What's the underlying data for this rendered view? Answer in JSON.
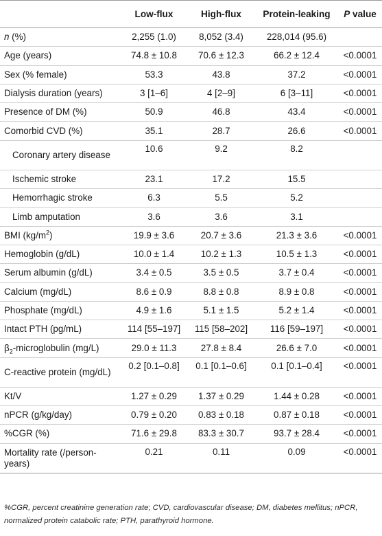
{
  "table": {
    "headers": {
      "col0": "",
      "col1": "Low-flux",
      "col2": "High-flux",
      "col3": "Protein-leaking",
      "col4_italic": "P",
      "col4_rest": " value"
    },
    "rows": [
      {
        "label_italic": "n",
        "label": " (%)",
        "low": "2,255 (1.0)",
        "high": "8,052 (3.4)",
        "prot": "228,014 (95.6)",
        "p": ""
      },
      {
        "label": "Age (years)",
        "low": "74.8 ± 10.8",
        "high": "70.6 ± 12.3",
        "prot": "66.2 ± 12.4",
        "p": "<0.0001"
      },
      {
        "label": "Sex (% female)",
        "low": "53.3",
        "high": "43.8",
        "prot": "37.2",
        "p": "<0.0001"
      },
      {
        "label": "Dialysis duration (years)",
        "low": "3 [1–6]",
        "high": "4 [2–9]",
        "prot": "6 [3–11]",
        "p": "<0.0001"
      },
      {
        "label": "Presence of DM (%)",
        "low": "50.9",
        "high": "46.8",
        "prot": "43.4",
        "p": "<0.0001"
      },
      {
        "label": "Comorbid CVD (%)",
        "low": "35.1",
        "high": "28.7",
        "prot": "26.6",
        "p": "<0.0001"
      },
      {
        "label": "Coronary artery disease",
        "low": "10.6",
        "high": "9.2",
        "prot": "8.2",
        "p": ""
      },
      {
        "label": "Ischemic stroke",
        "low": "23.1",
        "high": "17.2",
        "prot": "15.5",
        "p": ""
      },
      {
        "label": "Hemorrhagic stroke",
        "low": "6.3",
        "high": "5.5",
        "prot": "5.2",
        "p": ""
      },
      {
        "label": "Limb amputation",
        "low": "3.6",
        "high": "3.6",
        "prot": "3.1",
        "p": ""
      },
      {
        "label": "BMI (kg/m",
        "label_sup": "2",
        "label_after": ")",
        "low": "19.9 ± 3.6",
        "high": "20.7 ± 3.6",
        "prot": "21.3 ± 3.6",
        "p": "<0.0001"
      },
      {
        "label": "Hemoglobin (g/dL)",
        "low": "10.0 ± 1.4",
        "high": "10.2 ± 1.3",
        "prot": "10.5 ± 1.3",
        "p": "<0.0001"
      },
      {
        "label": "Serum albumin (g/dL)",
        "low": "3.4 ± 0.5",
        "high": "3.5 ± 0.5",
        "prot": "3.7 ± 0.4",
        "p": "<0.0001"
      },
      {
        "label": "Calcium (mg/dL)",
        "low": "8.6 ± 0.9",
        "high": "8.8 ± 0.8",
        "prot": "8.9 ± 0.8",
        "p": "<0.0001"
      },
      {
        "label": "Phosphate (mg/dL)",
        "low": "4.9 ± 1.6",
        "high": "5.1 ± 1.5",
        "prot": "5.2 ± 1.4",
        "p": "<0.0001"
      },
      {
        "label": "Intact PTH (pg/mL)",
        "low": "114 [55–197]",
        "high": "115 [58–202]",
        "prot": "116 [59–197]",
        "p": "<0.0001"
      },
      {
        "label": "β",
        "label_sub": "2",
        "label_after": "-microglobulin (mg/L)",
        "low": "29.0 ± 11.3",
        "high": "27.8 ± 8.4",
        "prot": "26.6 ± 7.0",
        "p": "<0.0001"
      },
      {
        "label": "C-reactive protein (mg/dL)",
        "low": "0.2 [0.1–0.8]",
        "high": "0.1 [0.1–0.6]",
        "prot": "0.1 [0.1–0.4]",
        "p": "<0.0001"
      },
      {
        "label": "Kt/V",
        "low": "1.27 ± 0.29",
        "high": "1.37 ± 0.29",
        "prot": "1.44 ± 0.28",
        "p": "<0.0001"
      },
      {
        "label": "nPCR (g/kg/day)",
        "low": "0.79 ± 0.20",
        "high": "0.83 ± 0.18",
        "prot": "0.87 ± 0.18",
        "p": "<0.0001"
      },
      {
        "label": "%CGR (%)",
        "low": "71.6 ± 29.8",
        "high": "83.3 ± 30.7",
        "prot": "93.7 ± 28.4",
        "p": "<0.0001"
      },
      {
        "label": "Mortality rate (/person-years)",
        "low": "0.21",
        "high": "0.11",
        "prot": "0.09",
        "p": "<0.0001"
      }
    ]
  },
  "footnote": "%CGR, percent creatinine generation rate; CVD, cardiovascular disease; DM, diabetes mellitus; nPCR, normalized protein catabolic rate; PTH, parathyroid hormone."
}
